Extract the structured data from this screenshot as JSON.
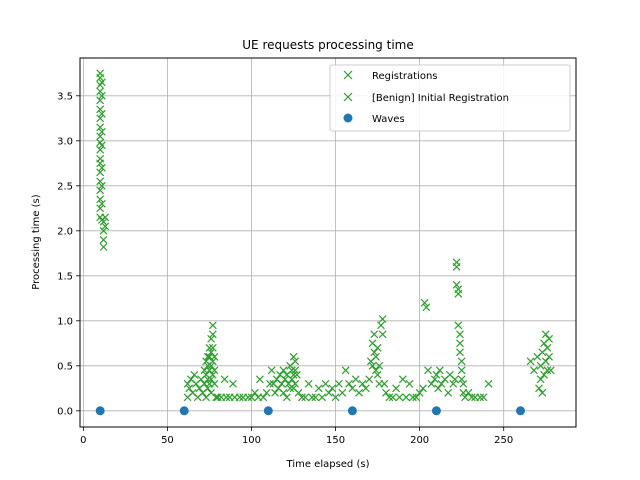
{
  "chart_data": {
    "type": "scatter",
    "title": "UE requests processing time",
    "xlabel": "Time elapsed (s)",
    "ylabel": "Processing time (s)",
    "xlim": [
      -2,
      293
    ],
    "ylim": [
      -0.18,
      3.92
    ],
    "xticks": [
      0,
      50,
      100,
      150,
      200,
      250
    ],
    "yticks": [
      0.0,
      0.5,
      1.0,
      1.5,
      2.0,
      2.5,
      3.0,
      3.5
    ],
    "grid": true,
    "legend_position": "top-right",
    "colors": {
      "registrations": "#2ca02c",
      "waves": "#1f77b4"
    },
    "series": [
      {
        "name": "Registrations",
        "marker": "x",
        "points": [
          [
            10,
            3.75
          ],
          [
            10,
            3.7
          ],
          [
            10,
            3.62
          ],
          [
            10,
            3.55
          ],
          [
            10,
            3.45
          ],
          [
            10,
            3.35
          ],
          [
            10,
            3.25
          ],
          [
            10,
            3.15
          ],
          [
            10,
            3.05
          ],
          [
            10,
            2.98
          ],
          [
            10,
            2.9
          ],
          [
            10,
            2.8
          ],
          [
            10,
            2.75
          ],
          [
            10,
            2.65
          ],
          [
            10,
            2.55
          ],
          [
            10,
            2.45
          ],
          [
            10,
            2.35
          ],
          [
            10,
            2.25
          ],
          [
            10,
            2.15
          ],
          [
            11,
            3.65
          ],
          [
            11,
            3.5
          ],
          [
            11,
            3.3
          ],
          [
            11,
            3.1
          ],
          [
            11,
            2.95
          ],
          [
            11,
            2.7
          ],
          [
            11,
            2.5
          ],
          [
            11,
            2.3
          ],
          [
            11,
            2.12
          ],
          [
            12,
            2.1
          ],
          [
            12,
            2.0
          ],
          [
            12,
            1.9
          ],
          [
            12,
            1.82
          ],
          [
            13,
            2.15
          ],
          [
            13,
            2.05
          ],
          [
            62,
            0.3
          ],
          [
            62,
            0.15
          ],
          [
            63,
            0.25
          ],
          [
            64,
            0.35
          ],
          [
            65,
            0.2
          ],
          [
            66,
            0.4
          ],
          [
            67,
            0.3
          ],
          [
            68,
            0.15
          ],
          [
            69,
            0.25
          ],
          [
            70,
            0.35
          ],
          [
            71,
            0.2
          ],
          [
            72,
            0.45
          ],
          [
            72,
            0.3
          ],
          [
            73,
            0.55
          ],
          [
            73,
            0.4
          ],
          [
            73,
            0.15
          ],
          [
            74,
            0.6
          ],
          [
            74,
            0.5
          ],
          [
            74,
            0.35
          ],
          [
            74,
            0.25
          ],
          [
            75,
            0.7
          ],
          [
            75,
            0.6
          ],
          [
            75,
            0.45
          ],
          [
            75,
            0.3
          ],
          [
            76,
            0.8
          ],
          [
            76,
            0.65
          ],
          [
            76,
            0.5
          ],
          [
            76,
            0.35
          ],
          [
            76,
            0.2
          ],
          [
            77,
            0.95
          ],
          [
            77,
            0.85
          ],
          [
            77,
            0.7
          ],
          [
            77,
            0.55
          ],
          [
            77,
            0.4
          ],
          [
            78,
            0.6
          ],
          [
            78,
            0.45
          ],
          [
            78,
            0.3
          ],
          [
            79,
            0.15
          ],
          [
            80,
            0.15
          ],
          [
            82,
            0.15
          ],
          [
            84,
            0.35
          ],
          [
            85,
            0.15
          ],
          [
            87,
            0.15
          ],
          [
            89,
            0.3
          ],
          [
            90,
            0.15
          ],
          [
            93,
            0.15
          ],
          [
            95,
            0.15
          ],
          [
            98,
            0.15
          ],
          [
            100,
            0.15
          ],
          [
            102,
            0.2
          ],
          [
            104,
            0.15
          ],
          [
            105,
            0.35
          ],
          [
            107,
            0.15
          ],
          [
            109,
            0.2
          ],
          [
            111,
            0.3
          ],
          [
            112,
            0.45
          ],
          [
            113,
            0.3
          ],
          [
            114,
            0.2
          ],
          [
            115,
            0.35
          ],
          [
            116,
            0.25
          ],
          [
            117,
            0.4
          ],
          [
            118,
            0.3
          ],
          [
            119,
            0.45
          ],
          [
            119,
            0.2
          ],
          [
            120,
            0.35
          ],
          [
            121,
            0.15
          ],
          [
            121,
            0.4
          ],
          [
            122,
            0.3
          ],
          [
            123,
            0.5
          ],
          [
            123,
            0.25
          ],
          [
            124,
            0.45
          ],
          [
            124,
            0.35
          ],
          [
            125,
            0.6
          ],
          [
            125,
            0.4
          ],
          [
            125,
            0.25
          ],
          [
            126,
            0.55
          ],
          [
            126,
            0.45
          ],
          [
            126,
            0.3
          ],
          [
            127,
            0.4
          ],
          [
            128,
            0.2
          ],
          [
            130,
            0.15
          ],
          [
            132,
            0.15
          ],
          [
            134,
            0.3
          ],
          [
            136,
            0.15
          ],
          [
            138,
            0.15
          ],
          [
            140,
            0.25
          ],
          [
            142,
            0.15
          ],
          [
            144,
            0.3
          ],
          [
            146,
            0.2
          ],
          [
            148,
            0.25
          ],
          [
            150,
            0.15
          ],
          [
            152,
            0.3
          ],
          [
            154,
            0.2
          ],
          [
            156,
            0.45
          ],
          [
            158,
            0.3
          ],
          [
            160,
            0.25
          ],
          [
            162,
            0.35
          ],
          [
            164,
            0.2
          ],
          [
            166,
            0.3
          ],
          [
            168,
            0.25
          ],
          [
            170,
            0.35
          ],
          [
            171,
            0.55
          ],
          [
            172,
            0.5
          ],
          [
            172,
            0.75
          ],
          [
            173,
            0.65
          ],
          [
            173,
            0.85
          ],
          [
            174,
            0.45
          ],
          [
            174,
            0.6
          ],
          [
            175,
            0.4
          ],
          [
            175,
            0.7
          ],
          [
            176,
            0.3
          ],
          [
            176,
            0.5
          ],
          [
            177,
            0.95
          ],
          [
            178,
            1.02
          ],
          [
            178,
            0.85
          ],
          [
            179,
            0.3
          ],
          [
            180,
            0.2
          ],
          [
            182,
            0.15
          ],
          [
            184,
            0.15
          ],
          [
            186,
            0.25
          ],
          [
            188,
            0.15
          ],
          [
            190,
            0.35
          ],
          [
            192,
            0.15
          ],
          [
            194,
            0.3
          ],
          [
            196,
            0.15
          ],
          [
            198,
            0.15
          ],
          [
            200,
            0.2
          ],
          [
            202,
            0.25
          ],
          [
            203,
            1.2
          ],
          [
            204,
            1.15
          ],
          [
            205,
            0.45
          ],
          [
            207,
            0.3
          ],
          [
            209,
            0.35
          ],
          [
            210,
            0.4
          ],
          [
            211,
            0.25
          ],
          [
            212,
            0.45
          ],
          [
            213,
            0.3
          ],
          [
            215,
            0.35
          ],
          [
            217,
            0.2
          ],
          [
            218,
            0.4
          ],
          [
            220,
            0.3
          ],
          [
            221,
            0.35
          ],
          [
            222,
            1.65
          ],
          [
            222,
            1.6
          ],
          [
            222,
            1.4
          ],
          [
            223,
            1.35
          ],
          [
            223,
            1.3
          ],
          [
            223,
            0.95
          ],
          [
            224,
            0.85
          ],
          [
            224,
            0.75
          ],
          [
            224,
            0.65
          ],
          [
            225,
            0.55
          ],
          [
            225,
            0.45
          ],
          [
            225,
            0.35
          ],
          [
            226,
            0.3
          ],
          [
            226,
            0.2
          ],
          [
            227,
            0.15
          ],
          [
            229,
            0.2
          ],
          [
            231,
            0.15
          ],
          [
            233,
            0.15
          ],
          [
            236,
            0.15
          ],
          [
            238,
            0.15
          ],
          [
            241,
            0.3
          ],
          [
            266,
            0.55
          ],
          [
            268,
            0.45
          ],
          [
            270,
            0.6
          ],
          [
            271,
            0.25
          ],
          [
            272,
            0.35
          ],
          [
            272,
            0.5
          ],
          [
            273,
            0.2
          ],
          [
            273,
            0.65
          ],
          [
            274,
            0.4
          ],
          [
            274,
            0.75
          ],
          [
            275,
            0.55
          ],
          [
            275,
            0.85
          ],
          [
            276,
            0.45
          ],
          [
            276,
            0.7
          ],
          [
            277,
            0.6
          ],
          [
            277,
            0.8
          ],
          [
            278,
            0.45
          ]
        ]
      },
      {
        "name": "[Benign] Initial Registration",
        "marker": "x",
        "points": []
      },
      {
        "name": "Waves",
        "marker": "o",
        "points": [
          [
            10,
            0
          ],
          [
            60,
            0
          ],
          [
            110,
            0
          ],
          [
            160,
            0
          ],
          [
            210,
            0
          ],
          [
            260,
            0
          ]
        ]
      }
    ]
  }
}
